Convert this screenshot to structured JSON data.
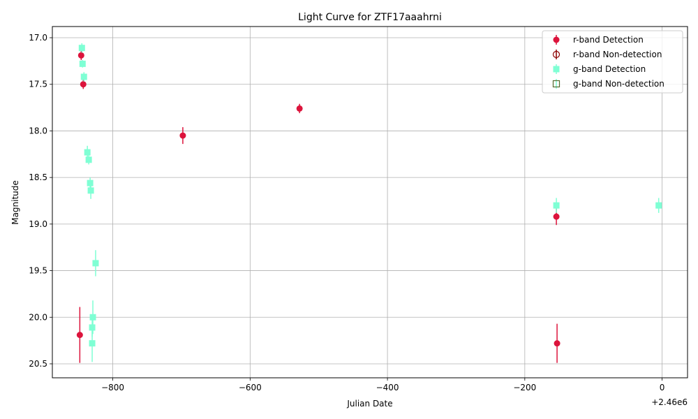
{
  "chart_data": {
    "type": "scatter",
    "title": "Light Curve for ZTF17aaahrni",
    "xlabel": "Julian Date",
    "ylabel": "Magnitude",
    "x_offset_label": "+2.46e6",
    "xlim": [
      -888,
      37
    ],
    "ylim": [
      20.65,
      16.88
    ],
    "y_inverted": true,
    "grid": true,
    "legend_position": "top-right",
    "x_ticks": [
      {
        "value": -800,
        "label": "−800"
      },
      {
        "value": -600,
        "label": "−600"
      },
      {
        "value": -400,
        "label": "−400"
      },
      {
        "value": -200,
        "label": "−200"
      },
      {
        "value": 0,
        "label": "0"
      }
    ],
    "y_ticks": [
      {
        "value": 17.0,
        "label": "17.0"
      },
      {
        "value": 17.5,
        "label": "17.5"
      },
      {
        "value": 18.0,
        "label": "18.0"
      },
      {
        "value": 18.5,
        "label": "18.5"
      },
      {
        "value": 19.0,
        "label": "19.0"
      },
      {
        "value": 19.5,
        "label": "19.5"
      },
      {
        "value": 20.0,
        "label": "20.0"
      },
      {
        "value": 20.5,
        "label": "20.5"
      }
    ],
    "series": [
      {
        "name": "r-band Detection",
        "marker": "circle",
        "color": "#dc143c",
        "filled": true,
        "points": [
          {
            "x": -846,
            "y": 17.19,
            "err": 0.05
          },
          {
            "x": -843,
            "y": 17.5,
            "err": 0.05
          },
          {
            "x": -848,
            "y": 20.19,
            "err": 0.3
          },
          {
            "x": -698,
            "y": 18.05,
            "err": 0.09
          },
          {
            "x": -528,
            "y": 17.76,
            "err": 0.05
          },
          {
            "x": -154,
            "y": 18.92,
            "err": 0.09
          },
          {
            "x": -153,
            "y": 20.28,
            "err": 0.21
          }
        ]
      },
      {
        "name": "r-band Non-detection",
        "marker": "circle",
        "color": "#8b0000",
        "filled": false,
        "points": []
      },
      {
        "name": "g-band Detection",
        "marker": "square",
        "color": "#7fffd4",
        "filled": true,
        "points": [
          {
            "x": -845,
            "y": 17.11,
            "err": 0.05
          },
          {
            "x": -844,
            "y": 17.28,
            "err": 0.04
          },
          {
            "x": -842,
            "y": 17.42,
            "err": 0.05
          },
          {
            "x": -837,
            "y": 18.23,
            "err": 0.07
          },
          {
            "x": -835,
            "y": 18.31,
            "err": 0.05
          },
          {
            "x": -833,
            "y": 18.56,
            "err": 0.06
          },
          {
            "x": -832,
            "y": 18.64,
            "err": 0.09
          },
          {
            "x": -829,
            "y": 20.0,
            "err": 0.18
          },
          {
            "x": -830,
            "y": 20.11,
            "err": 0.1
          },
          {
            "x": -830,
            "y": 20.28,
            "err": 0.2
          },
          {
            "x": -825,
            "y": 19.42,
            "err": 0.14
          },
          {
            "x": -154,
            "y": 18.8,
            "err": 0.08
          },
          {
            "x": -5,
            "y": 18.8,
            "err": 0.08
          }
        ]
      },
      {
        "name": "g-band Non-detection",
        "marker": "square",
        "color": "#7fffd4",
        "edge_color": "#556b2f",
        "filled": false,
        "points": []
      }
    ]
  }
}
